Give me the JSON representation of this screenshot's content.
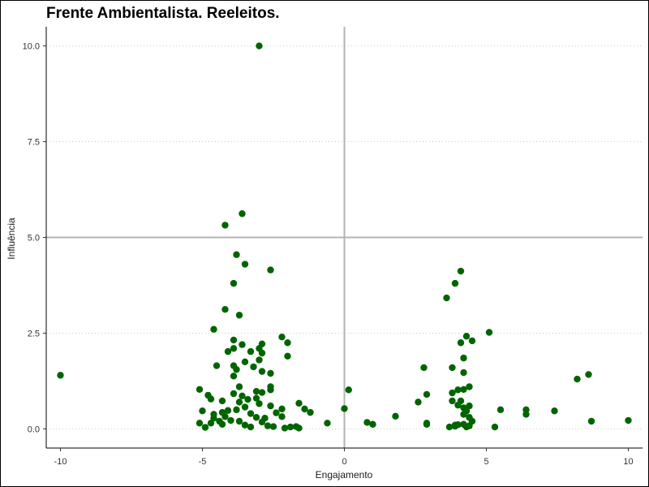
{
  "chart_data": {
    "type": "scatter",
    "title": "Frente Ambientalista. Reeleitos.",
    "xlabel": "Engajamento",
    "ylabel": "Influência",
    "xlim": [
      -10.5,
      10.5
    ],
    "ylim": [
      -0.5,
      10.5
    ],
    "xticks": [
      -10,
      -5,
      0,
      5,
      10
    ],
    "xtick_labels": [
      "-10",
      "-5",
      "0",
      "5",
      "10"
    ],
    "yticks": [
      0,
      2.5,
      5,
      7.5,
      10
    ],
    "ytick_labels": [
      "0.0",
      "2.5",
      "5.0",
      "7.5",
      "10.0"
    ],
    "reference_lines": {
      "x": 0,
      "y": 5
    },
    "grid": "horizontal dotted",
    "point_color": "#006400",
    "points": [
      [
        -10,
        1.4
      ],
      [
        -3,
        10
      ],
      [
        -3.6,
        5.62
      ],
      [
        -4.2,
        5.32
      ],
      [
        -3.8,
        4.55
      ],
      [
        -3.5,
        4.3
      ],
      [
        -2.6,
        4.15
      ],
      [
        -3.9,
        3.8
      ],
      [
        -4.2,
        3.12
      ],
      [
        -3.7,
        2.97
      ],
      [
        -4.6,
        2.6
      ],
      [
        -2.2,
        2.4
      ],
      [
        -2,
        2.25
      ],
      [
        -3.9,
        2.32
      ],
      [
        -3.6,
        2.2
      ],
      [
        -2.9,
        2.22
      ],
      [
        -3,
        2.1
      ],
      [
        -3.9,
        2.1
      ],
      [
        -4.1,
        2.02
      ],
      [
        -3.3,
        2.02
      ],
      [
        -2.9,
        1.98
      ],
      [
        -2,
        1.9
      ],
      [
        -3.5,
        1.75
      ],
      [
        -3,
        1.8
      ],
      [
        -3.9,
        1.65
      ],
      [
        -4.5,
        1.65
      ],
      [
        -3.2,
        1.62
      ],
      [
        -3.8,
        1.55
      ],
      [
        -2.9,
        1.5
      ],
      [
        -2.6,
        1.45
      ],
      [
        -3.9,
        1.38
      ],
      [
        -2.6,
        1.1
      ],
      [
        -2.6,
        1.02
      ],
      [
        -3.7,
        1.1
      ],
      [
        -5.1,
        1.03
      ],
      [
        -3.9,
        0.92
      ],
      [
        -3.1,
        0.98
      ],
      [
        -2.9,
        0.95
      ],
      [
        -3.6,
        0.86
      ],
      [
        -4.8,
        0.88
      ],
      [
        -4.7,
        0.78
      ],
      [
        -3.1,
        0.8
      ],
      [
        -3.4,
        0.77
      ],
      [
        -4.3,
        0.73
      ],
      [
        -3.7,
        0.7
      ],
      [
        -3,
        0.66
      ],
      [
        -1.6,
        0.67
      ],
      [
        -3.5,
        0.57
      ],
      [
        -2.6,
        0.6
      ],
      [
        -3.8,
        0.5
      ],
      [
        -2.2,
        0.52
      ],
      [
        -1.4,
        0.52
      ],
      [
        -5,
        0.47
      ],
      [
        -4.1,
        0.48
      ],
      [
        -4.3,
        0.43
      ],
      [
        -4.6,
        0.38
      ],
      [
        -3.3,
        0.4
      ],
      [
        -2.4,
        0.42
      ],
      [
        -1.2,
        0.43
      ],
      [
        -4.2,
        0.32
      ],
      [
        -4.6,
        0.28
      ],
      [
        -3.1,
        0.3
      ],
      [
        -2.8,
        0.28
      ],
      [
        -2.2,
        0.32
      ],
      [
        -4,
        0.22
      ],
      [
        -4.4,
        0.2
      ],
      [
        -3.7,
        0.2
      ],
      [
        -2.9,
        0.18
      ],
      [
        -4.7,
        0.15
      ],
      [
        -5.1,
        0.15
      ],
      [
        -4.3,
        0.12
      ],
      [
        -3.5,
        0.1
      ],
      [
        -2.7,
        0.08
      ],
      [
        -2.5,
        0.06
      ],
      [
        -1.9,
        0.05
      ],
      [
        -1.7,
        0.06
      ],
      [
        -4.9,
        0.04
      ],
      [
        -3.3,
        0.05
      ],
      [
        -2.1,
        0.02
      ],
      [
        -1.6,
        0.02
      ],
      [
        -0.6,
        0.15
      ],
      [
        0,
        0.53
      ],
      [
        0.15,
        1.02
      ],
      [
        0.8,
        0.17
      ],
      [
        1,
        0.12
      ],
      [
        1.8,
        0.33
      ],
      [
        2.6,
        0.7
      ],
      [
        2.8,
        1.6
      ],
      [
        2.9,
        0.9
      ],
      [
        2.9,
        0.15
      ],
      [
        2.9,
        0.12
      ],
      [
        3.6,
        3.42
      ],
      [
        3.8,
        1.6
      ],
      [
        3.9,
        3.8
      ],
      [
        3.8,
        0.94
      ],
      [
        3.8,
        0.73
      ],
      [
        3.7,
        0.05
      ],
      [
        3.9,
        0.07
      ],
      [
        3.9,
        0.1
      ],
      [
        4,
        0.11
      ],
      [
        4,
        1.02
      ],
      [
        4,
        0.62
      ],
      [
        4.1,
        4.12
      ],
      [
        4.1,
        2.25
      ],
      [
        4.1,
        0.73
      ],
      [
        4.2,
        1.85
      ],
      [
        4.2,
        1.47
      ],
      [
        4.2,
        1.03
      ],
      [
        4.2,
        0.55
      ],
      [
        4.2,
        0.38
      ],
      [
        4.2,
        0.12
      ],
      [
        4.3,
        2.42
      ],
      [
        4.3,
        0.47
      ],
      [
        4.3,
        0.05
      ],
      [
        4.4,
        1.1
      ],
      [
        4.4,
        0.6
      ],
      [
        4.4,
        0.3
      ],
      [
        4.4,
        0.08
      ],
      [
        4.5,
        2.3
      ],
      [
        4.5,
        0.2
      ],
      [
        5.1,
        2.52
      ],
      [
        5.3,
        0.05
      ],
      [
        5.5,
        0.5
      ],
      [
        6.4,
        0.5
      ],
      [
        6.4,
        0.38
      ],
      [
        7.4,
        0.47
      ],
      [
        8.2,
        1.3
      ],
      [
        8.6,
        1.42
      ],
      [
        8.7,
        0.2
      ],
      [
        10,
        0.22
      ]
    ]
  }
}
